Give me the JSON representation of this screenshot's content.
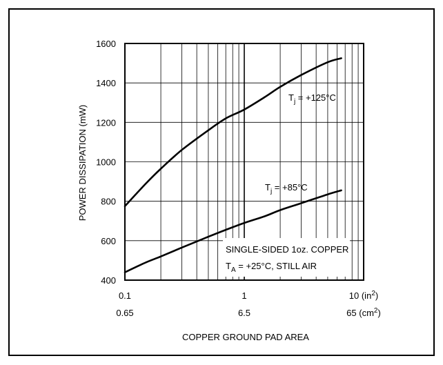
{
  "chart_data": {
    "type": "line",
    "title": "",
    "xlabel": "COPPER GROUND PAD AREA",
    "ylabel": "POWER DISSIPATION (mW)",
    "x_scale": "log",
    "xlim": [
      0.1,
      10
    ],
    "ylim": [
      400,
      1600
    ],
    "grid": true,
    "yticks": [
      400,
      600,
      800,
      1000,
      1200,
      1400,
      1600
    ],
    "xticks_primary": [
      {
        "value": 0.1,
        "label": "0.1"
      },
      {
        "value": 1,
        "label": "1"
      },
      {
        "value": 10,
        "label": "10 (in2)"
      }
    ],
    "xticks_secondary": [
      {
        "value": 0.1,
        "label": "0.65"
      },
      {
        "value": 1,
        "label": "6.5"
      },
      {
        "value": 10,
        "label": "65 (cm2)"
      }
    ],
    "series": [
      {
        "name": "Tj = +125°C",
        "x": [
          0.1,
          0.15,
          0.2,
          0.3,
          0.5,
          0.7,
          1.0,
          1.5,
          2.0,
          3.0,
          5.0,
          6.5
        ],
        "y": [
          775,
          890,
          965,
          1060,
          1160,
          1220,
          1265,
          1330,
          1380,
          1440,
          1505,
          1525
        ]
      },
      {
        "name": "Tj = +85°C",
        "x": [
          0.1,
          0.15,
          0.2,
          0.3,
          0.5,
          0.7,
          1.0,
          1.5,
          2.0,
          3.0,
          5.0,
          6.5
        ],
        "y": [
          440,
          490,
          520,
          565,
          620,
          655,
          690,
          725,
          755,
          790,
          835,
          855
        ]
      }
    ],
    "annotations": {
      "copper": "SINGLE-SIDED 1oz. COPPER",
      "condition": "TA = +25°C, STILL AIR"
    }
  },
  "labels": {
    "curve125_prefix": "T",
    "curve125_sub": "j",
    "curve125_rest": " = +125°C",
    "curve85_prefix": "T",
    "curve85_sub": "j",
    "curve85_rest": " = +85°C",
    "ambient_prefix": "T",
    "ambient_sub": "A",
    "ambient_rest": " = +25°C, STILL AIR"
  }
}
